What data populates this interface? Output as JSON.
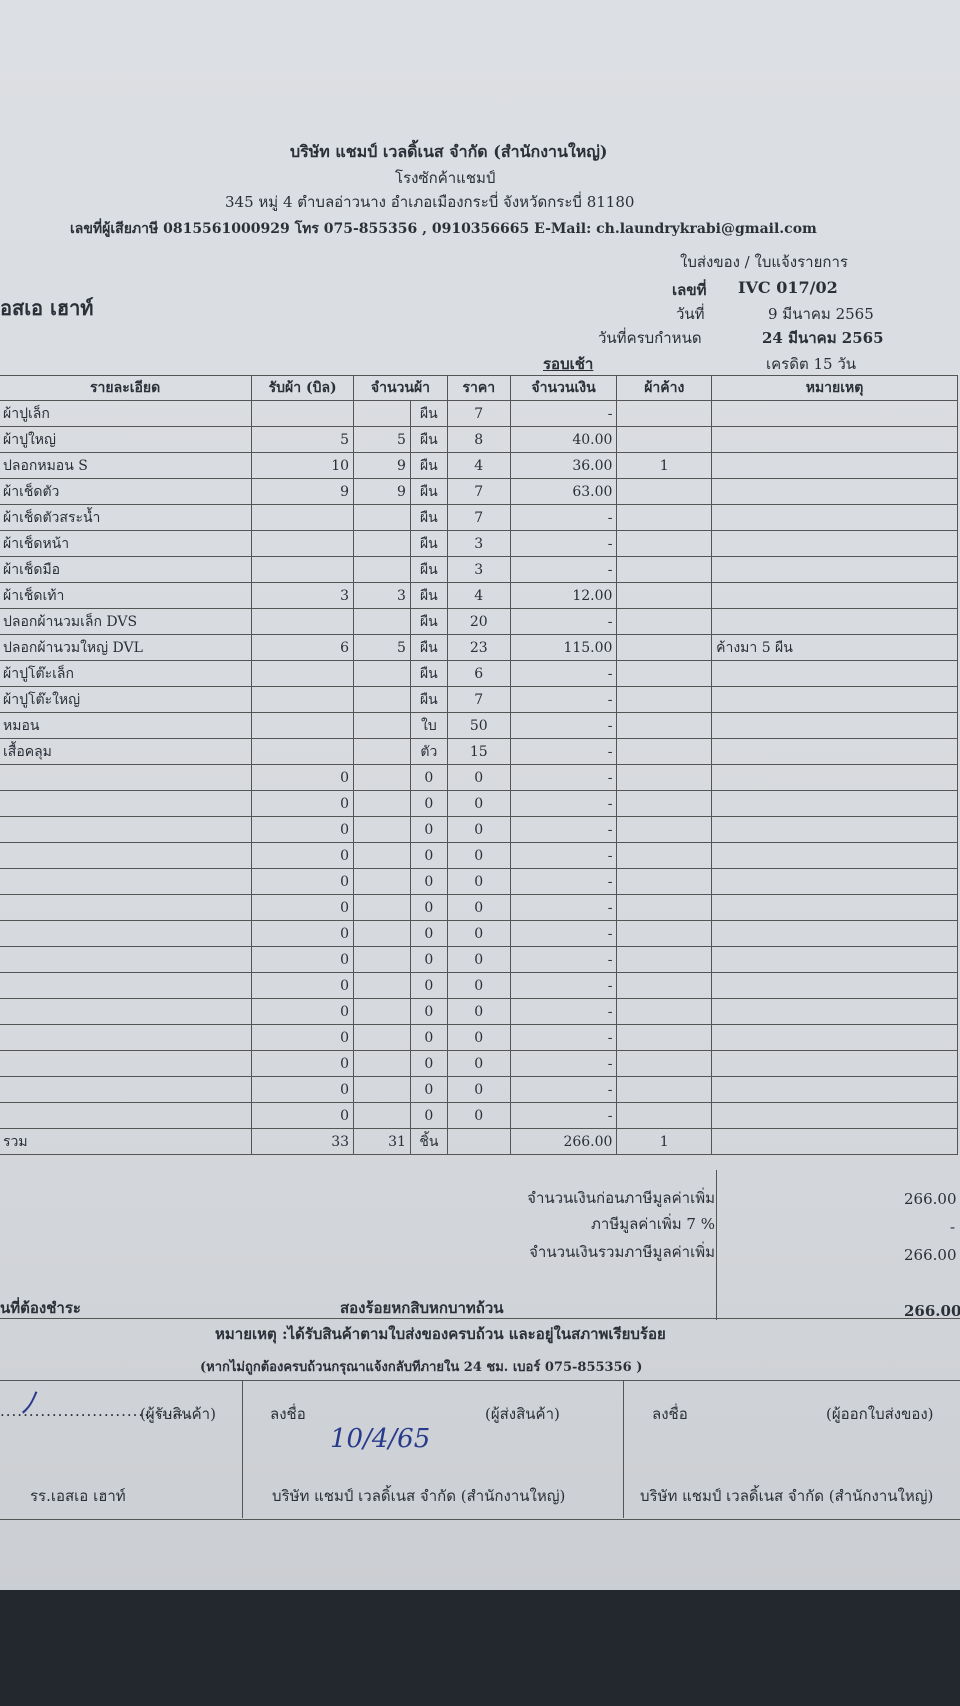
{
  "header": {
    "company": "บริษัท แชมป์ เวลดิ้เนส จำกัด (สำนักงานใหญ่)",
    "plant": "โรงซักค้าแชมป์",
    "address": "345 หมู่ 4 ตำบลอ่าวนาง อำเภอเมืองกระบี่ จังหวัดกระบี่ 81180",
    "contact": "เลขที่ผู้เสียภาษี 0815561000929 โทร 075-855356 , 0910356665 E-Mail: ch.laundrykrabi@gmail.com",
    "doc_title": "ใบส่งของ / ใบแจ้งรายการ"
  },
  "customer": "อสเอ เฮาท์",
  "meta": {
    "no_label": "เลขที่",
    "no": "IVC 017/02",
    "date_label": "วันที่",
    "date": "9 มีนาคม 2565",
    "due_label": "วันที่ครบกำหนด",
    "due": "24 มีนาคม 2565",
    "round": "รอบเช้า",
    "credit": "เครดิต 15 วัน"
  },
  "table": {
    "headers": {
      "item": "รายละเอียด",
      "received": "รับผ้า (บิล)",
      "qty": "จำนวนผ้า",
      "price": "ราคา",
      "amount": "จำนวนเงิน",
      "pending": "ผ้าค้าง",
      "note": "หมายเหตุ"
    },
    "rows": [
      {
        "item": "ผ้าปูเล็ก",
        "unit": "ผืน",
        "price": "7",
        "amount": "-"
      },
      {
        "item": "ผ้าปูใหญ่",
        "received": "5",
        "qty": "5",
        "unit": "ผืน",
        "price": "8",
        "amount": "40.00"
      },
      {
        "item": "ปลอกหมอน S",
        "received": "10",
        "qty": "9",
        "unit": "ผืน",
        "price": "4",
        "amount": "36.00",
        "pending": "1"
      },
      {
        "item": "ผ้าเช็ดตัว",
        "received": "9",
        "qty": "9",
        "unit": "ผืน",
        "price": "7",
        "amount": "63.00"
      },
      {
        "item": "ผ้าเช็ดตัวสระน้ำ",
        "unit": "ผืน",
        "price": "7",
        "amount": "-"
      },
      {
        "item": "ผ้าเช็ดหน้า",
        "unit": "ผืน",
        "price": "3",
        "amount": "-"
      },
      {
        "item": "ผ้าเช็ดมือ",
        "unit": "ผืน",
        "price": "3",
        "amount": "-"
      },
      {
        "item": "ผ้าเช็ดเท้า",
        "received": "3",
        "qty": "3",
        "unit": "ผืน",
        "price": "4",
        "amount": "12.00"
      },
      {
        "item": "ปลอกผ้านวมเล็ก DVS",
        "unit": "ผืน",
        "price": "20",
        "amount": "-"
      },
      {
        "item": "ปลอกผ้านวมใหญ่ DVL",
        "received": "6",
        "qty": "5",
        "unit": "ผืน",
        "price": "23",
        "amount": "115.00",
        "note": "ค้างมา 5 ผืน"
      },
      {
        "item": "ผ้าปูโต๊ะเล็ก",
        "unit": "ผืน",
        "price": "6",
        "amount": "-"
      },
      {
        "item": "ผ้าปูโต๊ะใหญ่",
        "unit": "ผืน",
        "price": "7",
        "amount": "-"
      },
      {
        "item": "หมอน",
        "unit": "ใบ",
        "price": "50",
        "amount": "-"
      },
      {
        "item": "เสื้อคลุม",
        "unit": "ตัว",
        "price": "15",
        "amount": "-"
      },
      {
        "received": "0",
        "unit": "0",
        "price": "0",
        "amount": "-"
      },
      {
        "received": "0",
        "unit": "0",
        "price": "0",
        "amount": "-"
      },
      {
        "received": "0",
        "unit": "0",
        "price": "0",
        "amount": "-"
      },
      {
        "received": "0",
        "unit": "0",
        "price": "0",
        "amount": "-"
      },
      {
        "received": "0",
        "unit": "0",
        "price": "0",
        "amount": "-"
      },
      {
        "received": "0",
        "unit": "0",
        "price": "0",
        "amount": "-"
      },
      {
        "received": "0",
        "unit": "0",
        "price": "0",
        "amount": "-"
      },
      {
        "received": "0",
        "unit": "0",
        "price": "0",
        "amount": "-"
      },
      {
        "received": "0",
        "unit": "0",
        "price": "0",
        "amount": "-"
      },
      {
        "received": "0",
        "unit": "0",
        "price": "0",
        "amount": "-"
      },
      {
        "received": "0",
        "unit": "0",
        "price": "0",
        "amount": "-"
      },
      {
        "received": "0",
        "unit": "0",
        "price": "0",
        "amount": "-"
      },
      {
        "received": "0",
        "unit": "0",
        "price": "0",
        "amount": "-"
      },
      {
        "received": "0",
        "unit": "0",
        "price": "0",
        "amount": "-"
      }
    ],
    "total": {
      "item": "รวม",
      "received": "33",
      "qty": "31",
      "unit": "ชิ้น",
      "amount": "266.00",
      "pending": "1"
    }
  },
  "summary": {
    "subtotal_label": "จำนวนเงินก่อนภาษีมูลค่าเพิ่ม",
    "subtotal": "266.00",
    "vat_label": "ภาษีมูลค่าเพิ่ม 7 %",
    "vat": "-",
    "total_label": "จำนวนเงินรวมภาษีมูลค่าเพิ่ม",
    "total": "266.00",
    "due_label": "นที่ต้องชำระ",
    "due_words": "สองร้อยหกสิบหกบาทถ้วน",
    "due": "266.00"
  },
  "notes": {
    "line1": "หมายเหตุ :ได้รับสินค้าตามใบส่งของครบถ้วน และอยู่ในสภาพเรียบร้อย",
    "line2": "(หากไม่ถูกต้องครบถ้วนกรุณาแจ้งกลับทีภายใน 24 ชม. เบอร์ 075-855356 )"
  },
  "signatures": {
    "receiver_role": "(ผู้รับสินค้า)",
    "receiver_org": "รร.เอสเอ เฮาท์",
    "sign_label": "ลงชื่อ",
    "sender_role": "(ผู้ส่งสินค้า)",
    "sender_org": "บริษัท แชมป์ เวลดิ้เนส จำกัด (สำนักงานใหญ่)",
    "sender_date": "10/4/65",
    "issuer_role": "(ผู้ออกใบส่งของ)",
    "issuer_org": "บริษัท แชมป์ เวลดิ้เนส จำกัด (สำนักงานใหญ่)"
  }
}
